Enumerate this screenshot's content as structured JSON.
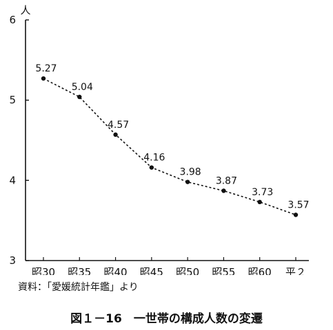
{
  "chart_data": {
    "type": "line",
    "title": "図１－16　一世帯の構成人数の変遷",
    "source": "資料：「愛媛統計年鑑」より",
    "ylabel": "人",
    "xlabel": "",
    "categories": [
      "昭30",
      "昭35",
      "昭40",
      "昭45",
      "昭50",
      "昭55",
      "昭60",
      "平２"
    ],
    "series": [
      {
        "values": [
          5.27,
          5.04,
          4.57,
          4.16,
          3.98,
          3.87,
          3.73,
          3.57
        ]
      }
    ],
    "data_labels": [
      "5.27",
      "5.04",
      "4.57",
      "4.16",
      "3.98",
      "3.87",
      "3.73",
      "3.57"
    ],
    "ylim": [
      3,
      6
    ],
    "yticks": [
      3,
      4,
      5,
      6
    ],
    "ytick_labels": [
      "3",
      "4",
      "5",
      "6"
    ],
    "line_style": "dashed",
    "marker": "dot",
    "grid": false,
    "legend": "none"
  }
}
